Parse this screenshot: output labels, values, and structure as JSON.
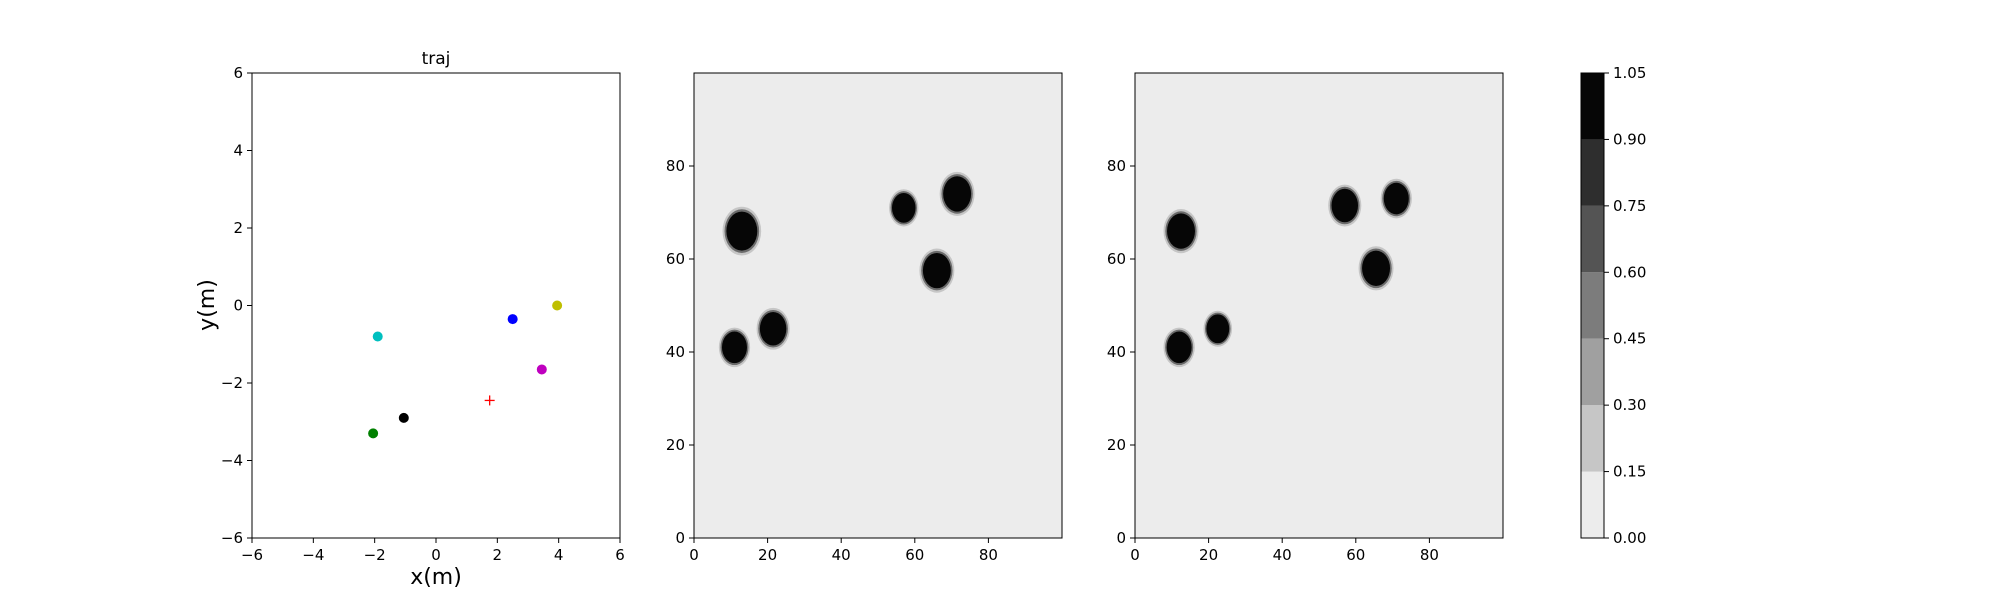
{
  "chart_data": [
    {
      "type": "scatter",
      "title": "traj",
      "xlabel": "x(m)",
      "ylabel": "y(m)",
      "xlim": [
        -6,
        6
      ],
      "ylim": [
        -6,
        6
      ],
      "xticks": [
        -6,
        -4,
        -2,
        0,
        2,
        4,
        6
      ],
      "yticks": [
        -6,
        -4,
        -2,
        0,
        2,
        4,
        6
      ],
      "grid": false,
      "points": [
        {
          "x": -1.9,
          "y": -0.8,
          "color": "#00bfbf",
          "marker": "circle"
        },
        {
          "x": 2.5,
          "y": -0.35,
          "color": "#0000ff",
          "marker": "circle"
        },
        {
          "x": 3.95,
          "y": 0.0,
          "color": "#bfbf00",
          "marker": "circle"
        },
        {
          "x": 3.45,
          "y": -1.65,
          "color": "#bf00bf",
          "marker": "circle"
        },
        {
          "x": 1.75,
          "y": -2.45,
          "color": "#ff0000",
          "marker": "plus"
        },
        {
          "x": -1.05,
          "y": -2.9,
          "color": "#000000",
          "marker": "circle"
        },
        {
          "x": -2.05,
          "y": -3.3,
          "color": "#008000",
          "marker": "circle"
        }
      ]
    },
    {
      "type": "heatmap",
      "title": "",
      "xlim": [
        0,
        100
      ],
      "ylim": [
        0,
        100
      ],
      "xticks": [
        0,
        20,
        40,
        60,
        80
      ],
      "yticks": [
        0,
        20,
        40,
        60,
        80
      ],
      "background_value": 0.07,
      "blobs": [
        {
          "x": 13,
          "y": 66,
          "r": 4.2,
          "value": 1.0
        },
        {
          "x": 11,
          "y": 41,
          "r": 3.4,
          "value": 1.0
        },
        {
          "x": 21.5,
          "y": 45,
          "r": 3.6,
          "value": 1.0
        },
        {
          "x": 57,
          "y": 71,
          "r": 3.2,
          "value": 1.0
        },
        {
          "x": 71.5,
          "y": 74,
          "r": 3.8,
          "value": 1.0
        },
        {
          "x": 66,
          "y": 57.5,
          "r": 3.8,
          "value": 1.0
        }
      ]
    },
    {
      "type": "heatmap",
      "title": "",
      "xlim": [
        0,
        100
      ],
      "ylim": [
        0,
        100
      ],
      "xticks": [
        0,
        20,
        40,
        60,
        80
      ],
      "yticks": [
        0,
        20,
        40,
        60,
        80
      ],
      "background_value": 0.07,
      "blobs": [
        {
          "x": 12.5,
          "y": 66,
          "r": 3.8,
          "value": 1.0
        },
        {
          "x": 12,
          "y": 41,
          "r": 3.4,
          "value": 1.0
        },
        {
          "x": 22.5,
          "y": 45,
          "r": 3.1,
          "value": 1.0
        },
        {
          "x": 57,
          "y": 71.5,
          "r": 3.6,
          "value": 1.0
        },
        {
          "x": 71,
          "y": 73,
          "r": 3.4,
          "value": 1.0
        },
        {
          "x": 65.5,
          "y": 58,
          "r": 3.8,
          "value": 1.0
        }
      ]
    }
  ],
  "colorbar": {
    "ticks": [
      "0.00",
      "0.15",
      "0.30",
      "0.45",
      "0.60",
      "0.75",
      "0.90",
      "1.05"
    ],
    "levels": [
      0.0,
      0.15,
      0.3,
      0.45,
      0.6,
      0.75,
      0.9,
      1.05
    ],
    "colors": [
      "#ececec",
      "#c6c6c6",
      "#a0a0a0",
      "#7c7c7c",
      "#545454",
      "#2e2e2e",
      "#060606"
    ]
  }
}
